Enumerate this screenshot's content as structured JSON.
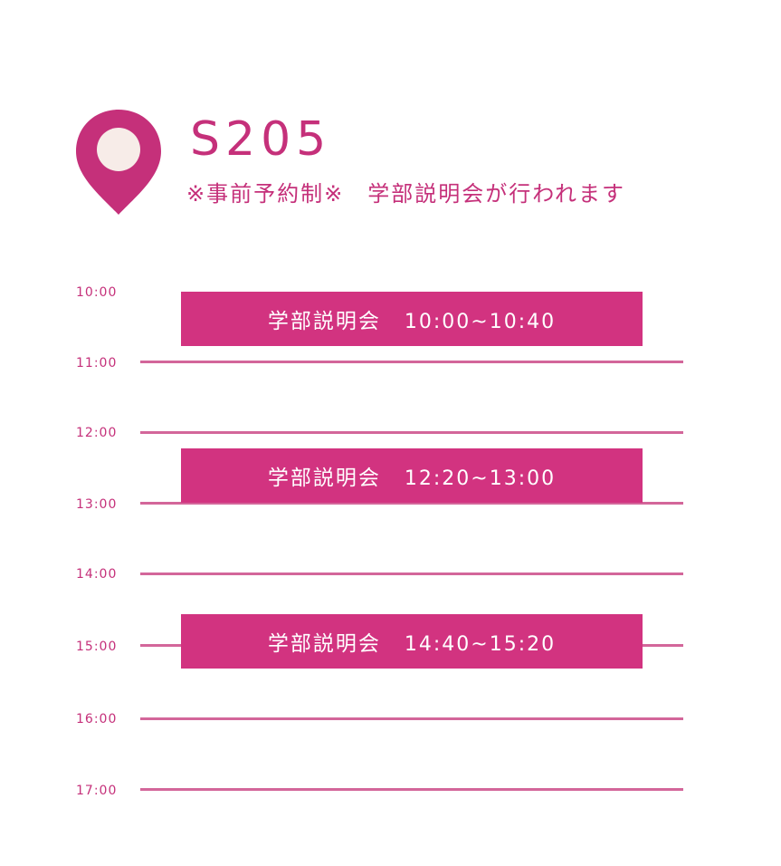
{
  "header": {
    "room": "S205",
    "note": "※事前予約制※　学部説明会が行われます",
    "pin_icon": "map-pin-icon"
  },
  "colors": {
    "accent": "#c5307a",
    "event_fill": "#d23380",
    "line": "#d3669a",
    "pin_inner": "#f7ece8"
  },
  "timeline": {
    "hours": [
      "10:00",
      "11:00",
      "12:00",
      "13:00",
      "14:00",
      "15:00",
      "16:00",
      "17:00"
    ]
  },
  "events": [
    {
      "title": "学部説明会",
      "time": "10:00~10:40"
    },
    {
      "title": "学部説明会",
      "time": "12:20~13:00"
    },
    {
      "title": "学部説明会",
      "time": "14:40~15:20"
    }
  ]
}
